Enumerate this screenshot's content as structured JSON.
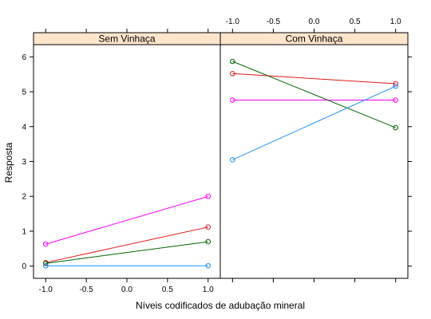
{
  "chart_data": {
    "type": "line",
    "xlabel": "Níveis codificados de adubação mineral",
    "ylabel": "Resposta",
    "xlim": [
      -1.15,
      1.15
    ],
    "ylim": [
      -0.35,
      6.35
    ],
    "x_ticks": [
      -1.0,
      -0.5,
      0.0,
      0.5,
      1.0
    ],
    "x_tick_labels": [
      "-1.0",
      "-0.5",
      "0.0",
      "0.5",
      "1.0"
    ],
    "y_ticks": [
      0,
      1,
      2,
      3,
      4,
      5,
      6
    ],
    "y_tick_labels": [
      "0",
      "1",
      "2",
      "3",
      "4",
      "5",
      "6"
    ],
    "x": [
      -1,
      1
    ],
    "panels": [
      {
        "strip_label": "Sem Vinhaça",
        "series": [
          {
            "color": "#ff00ff",
            "values": [
              0.63,
              2.0
            ]
          },
          {
            "color": "#e31a1c",
            "values": [
              0.1,
              1.12
            ]
          },
          {
            "color": "#006400",
            "values": [
              0.08,
              0.7
            ]
          },
          {
            "color": "#1e90ff",
            "values": [
              0.01,
              0.01
            ]
          }
        ]
      },
      {
        "strip_label": "Com Vinhaça",
        "series": [
          {
            "color": "#ff00ff",
            "values": [
              4.76,
              4.76
            ]
          },
          {
            "color": "#e31a1c",
            "values": [
              5.52,
              5.23
            ]
          },
          {
            "color": "#006400",
            "values": [
              5.87,
              3.97
            ]
          },
          {
            "color": "#1e90ff",
            "values": [
              3.05,
              5.16
            ]
          }
        ]
      }
    ]
  },
  "colors": {
    "strip_background": "#ffe5cc",
    "frame": "#000000"
  }
}
